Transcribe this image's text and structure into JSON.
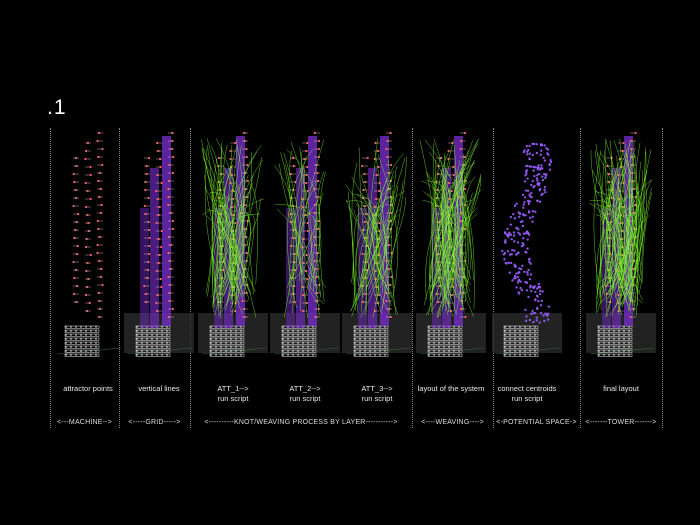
{
  "slide_number": ".1",
  "panels": [
    {
      "caption": [
        "attractor points"
      ],
      "stage": "machine"
    },
    {
      "caption": [
        "vertical lines"
      ],
      "stage": "grid"
    },
    {
      "caption": [
        "ATT_1-->",
        "run script"
      ],
      "stage": "att1"
    },
    {
      "caption": [
        "ATT_2-->",
        "run script"
      ],
      "stage": "att2"
    },
    {
      "caption": [
        "ATT_3-->",
        "run script"
      ],
      "stage": "att3"
    },
    {
      "caption": [
        "layout of the system"
      ],
      "stage": "layout"
    },
    {
      "caption": [
        "connect centroids",
        "run script"
      ],
      "stage": "centroids"
    },
    {
      "caption": [
        "final layout"
      ],
      "stage": "final"
    }
  ],
  "phases": [
    {
      "label": "<---MACHINE-->"
    },
    {
      "label": "<-----GRID----->"
    },
    {
      "label": "<----------KNOT/WEAVING PROCESS BY LAYER----------->"
    },
    {
      "label": "<----WEAVING---->"
    },
    {
      "label": "<-POTENTIAL SPACE->"
    },
    {
      "label": "<-------TOWER------->"
    }
  ],
  "colors": {
    "background": "#000000",
    "attractor": "#ff4040",
    "grid": "#7a2fd0",
    "weave": "#7dff2a",
    "base": "#d8d8d8",
    "centroid": "#9a5cff"
  }
}
